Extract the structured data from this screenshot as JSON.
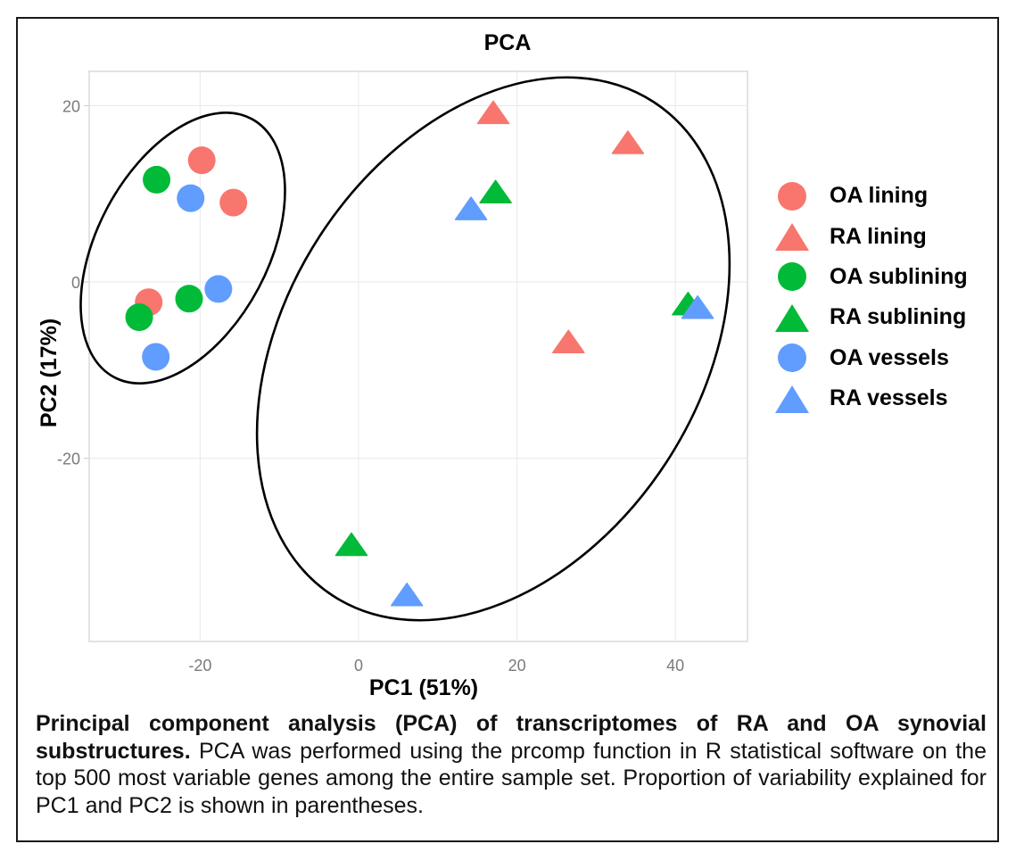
{
  "chart_data": {
    "type": "scatter",
    "title": "PCA",
    "xlabel": "PC1 (51%)",
    "ylabel": "PC2 (17%)",
    "xlim": [
      -34,
      49
    ],
    "ylim": [
      -41,
      24
    ],
    "xticks": [
      -20,
      0,
      20,
      40
    ],
    "yticks": [
      -20,
      0,
      20
    ],
    "xtick_labels": [
      "-20",
      "0",
      "20",
      "40"
    ],
    "ytick_labels": [
      "-20",
      "0",
      "20"
    ],
    "grid": true,
    "legend_position": "right",
    "series": [
      {
        "name": "OA lining",
        "shape": "circle",
        "color": "#F8766D",
        "points": [
          [
            -19.8,
            13.8
          ],
          [
            -15.8,
            9.0
          ],
          [
            -26.5,
            -2.3
          ]
        ]
      },
      {
        "name": "RA lining",
        "shape": "triangle",
        "color": "#F8766D",
        "points": [
          [
            17.0,
            19.0
          ],
          [
            34.0,
            15.6
          ],
          [
            26.5,
            -7.0
          ]
        ]
      },
      {
        "name": "OA sublining",
        "shape": "circle",
        "color": "#00BA38",
        "points": [
          [
            -25.5,
            11.6
          ],
          [
            -21.4,
            -1.9
          ],
          [
            -27.7,
            -4.0
          ]
        ]
      },
      {
        "name": "RA sublining",
        "shape": "triangle",
        "color": "#00BA38",
        "points": [
          [
            17.3,
            10.0
          ],
          [
            41.6,
            -2.7
          ],
          [
            -0.9,
            -30.0
          ]
        ]
      },
      {
        "name": "OA vessels",
        "shape": "circle",
        "color": "#619CFF",
        "points": [
          [
            -21.2,
            9.5
          ],
          [
            -17.7,
            -0.8
          ],
          [
            -25.6,
            -8.5
          ]
        ]
      },
      {
        "name": "RA vessels",
        "shape": "triangle",
        "color": "#619CFF",
        "points": [
          [
            14.2,
            8.1
          ],
          [
            42.8,
            -3.1
          ],
          [
            6.1,
            -35.7
          ]
        ]
      }
    ],
    "annotations": [
      {
        "type": "ellipse",
        "label": "OA cluster",
        "center": [
          -22,
          3.9
        ],
        "note": "encloses all OA samples"
      },
      {
        "type": "ellipse",
        "label": "RA cluster",
        "center": [
          17,
          -7.7
        ],
        "note": "encloses all RA samples"
      }
    ]
  },
  "caption": {
    "bold": "Principal component analysis (PCA) of transcriptomes of RA and OA synovial substructures.",
    "text": " PCA was performed using the prcomp function in R statistical software on the top 500 most variable genes among the entire sample set. Proportion of variability explained for PC1 and PC2 is shown in parentheses."
  }
}
